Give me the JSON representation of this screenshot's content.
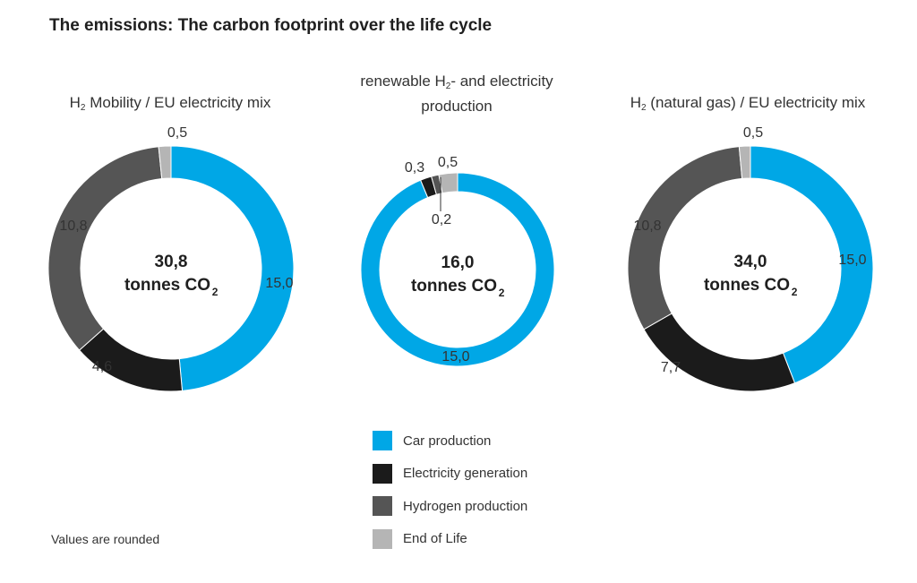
{
  "title": "The emissions: The carbon footprint over the life cycle",
  "chart_data": [
    {
      "type": "pie",
      "title_parts": [
        "H",
        "2",
        " Mobility / EU electricity mix"
      ],
      "total": "30,8",
      "unit": "tonnes CO",
      "unit_sub": "2",
      "slices": [
        {
          "category": "Car production",
          "value": 15.0,
          "label": "15,0"
        },
        {
          "category": "Electricity generation",
          "value": 4.6,
          "label": "4,6"
        },
        {
          "category": "Hydrogen production",
          "value": 10.8,
          "label": "10,8"
        },
        {
          "category": "End of Life",
          "value": 0.5,
          "label": "0,5"
        }
      ]
    },
    {
      "type": "pie",
      "title_parts": [
        "renewable H",
        "2",
        "- and electricity production"
      ],
      "total": "16,0",
      "unit": "tonnes CO",
      "unit_sub": "2",
      "slices": [
        {
          "category": "Car production",
          "value": 15.0,
          "label": "15,0"
        },
        {
          "category": "Electricity generation",
          "value": 0.3,
          "label": "0,3"
        },
        {
          "category": "Hydrogen production",
          "value": 0.2,
          "label": "0,2"
        },
        {
          "category": "End of Life",
          "value": 0.5,
          "label": "0,5"
        }
      ]
    },
    {
      "type": "pie",
      "title_parts": [
        "H",
        "2",
        " (natural gas) / EU electricity mix"
      ],
      "total": "34,0",
      "unit": "tonnes CO",
      "unit_sub": "2",
      "slices": [
        {
          "category": "Car production",
          "value": 15.0,
          "label": "15,0"
        },
        {
          "category": "Electricity generation",
          "value": 7.7,
          "label": "7,7"
        },
        {
          "category": "Hydrogen production",
          "value": 10.8,
          "label": "10,8"
        },
        {
          "category": "End of Life",
          "value": 0.5,
          "label": "0,5"
        }
      ]
    }
  ],
  "legend": [
    {
      "label": "Car production",
      "color": "#00a7e6"
    },
    {
      "label": "Electricity generation",
      "color": "#1b1b1b"
    },
    {
      "label": "Hydrogen production",
      "color": "#555555"
    },
    {
      "label": "End of Life",
      "color": "#b5b5b5"
    }
  ],
  "note": "Values are rounded"
}
